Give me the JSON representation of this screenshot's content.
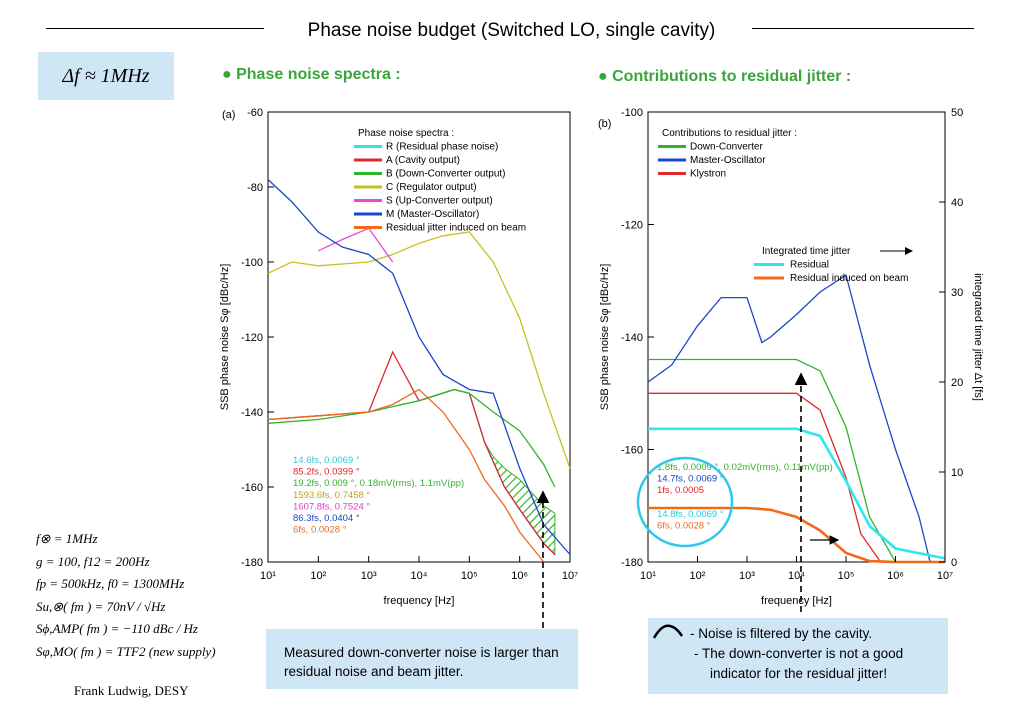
{
  "slide": {
    "title": "Phase noise budget (Switched LO, single cavity)",
    "delta_f": "Δf ≈ 1MHz",
    "bullet_left": "● Phase noise spectra :",
    "bullet_right": "● Contributions to residual jitter :",
    "author": "Frank Ludwig, DESY",
    "params": [
      "f⊗ = 1MHz",
      "g = 100, f12 = 200Hz",
      "fp = 500kHz, f0 = 1300MHz",
      "Su,⊗( fm ) = 70nV / √Hz",
      "Sϕ,AMP( fm ) = −110 dBc / Hz",
      "Sφ,MO( fm ) = TTF2 (new supply)"
    ],
    "note_left": "Measured down-converter noise is larger than residual noise and beam jitter.",
    "note_right_lines": [
      "-  Noise is filtered by the cavity.",
      "-  The down-converter is not a good",
      "indicator for the residual jitter!"
    ]
  },
  "chart_data": [
    {
      "type": "line",
      "panel": "(a)",
      "xlabel": "frequency [Hz]",
      "ylabel": "SSB phase noise Sφ [dBc/Hz]",
      "xscale": "log",
      "xlim": [
        10,
        10000000
      ],
      "ylim": [
        -180,
        -60
      ],
      "xticks": [
        "10¹",
        "10²",
        "10³",
        "10⁴",
        "10⁵",
        "10⁶",
        "10⁷"
      ],
      "yticks": [
        "-60",
        "-80",
        "-100",
        "-120",
        "-140",
        "-160",
        "-180"
      ],
      "legend_title": "Phase noise spectra :",
      "legend_position": "top-right",
      "series": [
        {
          "name": "R (Residual phase noise)",
          "color": "#2fe6f0",
          "x": [
            10,
            100,
            1000,
            10000,
            50000,
            100000,
            200000,
            500000,
            1000000,
            3000000,
            5000000
          ],
          "y": [
            -142,
            -141,
            -140,
            -137,
            -134,
            -135,
            -148,
            -160,
            -166,
            -175,
            -178
          ]
        },
        {
          "name": "A (Cavity output)",
          "color": "#e2262b",
          "x": [
            10,
            100,
            1000,
            3000,
            10000,
            50000,
            100000,
            200000,
            500000,
            1000000,
            3000000,
            5000000
          ],
          "y": [
            -142,
            -141,
            -140,
            -124,
            -137,
            -134,
            -135,
            -148,
            -160,
            -166,
            -175,
            -178
          ]
        },
        {
          "name": "B (Down-Converter output)",
          "color": "#33b22e",
          "x": [
            10,
            100,
            1000,
            10000,
            50000,
            100000,
            300000,
            1000000,
            3000000,
            5000000
          ],
          "y": [
            -143,
            -142,
            -140,
            -137,
            -134,
            -135,
            -140,
            -145,
            -154,
            -160
          ]
        },
        {
          "name": "C (Regulator output)",
          "color": "#c8c020",
          "x": [
            10,
            30,
            100,
            1000,
            3000,
            10000,
            30000,
            100000,
            300000,
            1000000,
            3000000,
            10000000
          ],
          "y": [
            -103,
            -100,
            -101,
            -100,
            -98,
            -95,
            -93,
            -92,
            -100,
            -115,
            -135,
            -155
          ]
        },
        {
          "name": "S (Up-Converter output)",
          "color": "#e649d8",
          "x": [
            100,
            300,
            1000,
            3000
          ],
          "y": [
            -97,
            -94,
            -91,
            -100
          ]
        },
        {
          "name": "M (Master-Oscillator)",
          "color": "#1a46c8",
          "x": [
            10,
            30,
            100,
            300,
            1000,
            3000,
            10000,
            30000,
            100000,
            300000,
            1000000,
            3000000,
            10000000
          ],
          "y": [
            -78,
            -84,
            -92,
            -96,
            -98,
            -103,
            -120,
            -130,
            -134,
            -135,
            -155,
            -170,
            -178
          ]
        },
        {
          "name": "Residual jitter induced on beam",
          "color": "#f06a1a",
          "x": [
            10,
            100,
            1000,
            3000,
            10000,
            30000,
            100000,
            200000,
            500000,
            1000000,
            3000000
          ],
          "y": [
            -142,
            -141,
            -140,
            -138,
            -134,
            -140,
            -150,
            -158,
            -165,
            -172,
            -180
          ]
        }
      ],
      "annotations": [
        {
          "text": "14.6fs, 0.0069 °",
          "color": "#2fc8d8"
        },
        {
          "text": "85.2fs, 0.0399 °",
          "color": "#e2262b"
        },
        {
          "text": "19.2fs, 0.009 °,  0.18mV(rms),  1.1mV(pp)",
          "color": "#33b22e"
        },
        {
          "text": "1593.6fs, 0.7458 °",
          "color": "#b8a818"
        },
        {
          "text": "1607.8fs, 0.7524 °",
          "color": "#e040c0"
        },
        {
          "text": "86.3fs, 0.0404 °",
          "color": "#1a46c8"
        },
        {
          "text": "6fs, 0.0028 °",
          "color": "#f06a1a"
        }
      ]
    },
    {
      "type": "line",
      "panel": "(b)",
      "xlabel": "frequency [Hz]",
      "ylabel": "SSB phase noise Sφ [dBc/Hz]",
      "y2label": "integrated time jitter Δt [fs]",
      "xscale": "log",
      "xlim": [
        10,
        10000000
      ],
      "ylim": [
        -180,
        -100
      ],
      "y2lim": [
        0,
        50
      ],
      "xticks": [
        "10¹",
        "10²",
        "10³",
        "10⁴",
        "10⁵",
        "10⁶",
        "10⁷"
      ],
      "yticks": [
        "-100",
        "-120",
        "-140",
        "-160",
        "-180"
      ],
      "y2ticks": [
        "50",
        "40",
        "30",
        "20",
        "10",
        "0"
      ],
      "legend_title": "Contributions to residual jitter :",
      "legend2_title": "Integrated time jitter",
      "legend_position": "top-left",
      "series": [
        {
          "name": "Down-Converter",
          "color": "#33b22e",
          "x": [
            10,
            1000,
            10000,
            30000,
            100000,
            300000,
            1000000,
            10000000
          ],
          "y": [
            -144,
            -144,
            -144,
            -146,
            -156,
            -172,
            -180,
            -180
          ]
        },
        {
          "name": "Master-Oscillator",
          "color": "#1a46c8",
          "x": [
            10,
            30,
            100,
            300,
            1000,
            2000,
            3000,
            10000,
            30000,
            100000,
            300000,
            1000000,
            3000000,
            5000000
          ],
          "y": [
            -148,
            -145,
            -138,
            -133,
            -133,
            -141,
            -140,
            -136,
            -132,
            -129,
            -145,
            -160,
            -172,
            -180
          ]
        },
        {
          "name": "Klystron",
          "color": "#e2262b",
          "x": [
            10,
            1000,
            10000,
            30000,
            100000,
            200000,
            500000,
            1000000,
            10000000
          ],
          "y": [
            -150,
            -150,
            -150,
            -153,
            -165,
            -175,
            -180,
            -180,
            -180
          ]
        },
        {
          "name": "Residual",
          "color": "#2fe6f0",
          "axis": "y2",
          "x": [
            10,
            1000,
            10000,
            30000,
            100000,
            300000,
            1000000,
            10000000
          ],
          "y": [
            14.8,
            14.8,
            14.8,
            14,
            9,
            4,
            1.5,
            0.4
          ]
        },
        {
          "name": "Residual induced on beam",
          "color": "#f06a1a",
          "axis": "y2",
          "x": [
            10,
            1000,
            3000,
            10000,
            30000,
            100000,
            300000,
            1000000,
            10000000
          ],
          "y": [
            6,
            6,
            5.8,
            5,
            3.5,
            1,
            0.1,
            0,
            0
          ]
        }
      ],
      "annotations": [
        {
          "text": "1.8fs, 0.0009 °,  0.02mV(rms),  0.11mV(pp)",
          "color": "#33b22e"
        },
        {
          "text": "14.7fs, 0.0069 °",
          "color": "#1a46c8"
        },
        {
          "text": "1fs, 0.0005",
          "color": "#e2262b"
        },
        {
          "text": "14.8fs, 0.0069 °",
          "color": "#2fc8d8"
        },
        {
          "text": "6fs, 0.0028 °",
          "color": "#f06a1a"
        }
      ]
    }
  ]
}
